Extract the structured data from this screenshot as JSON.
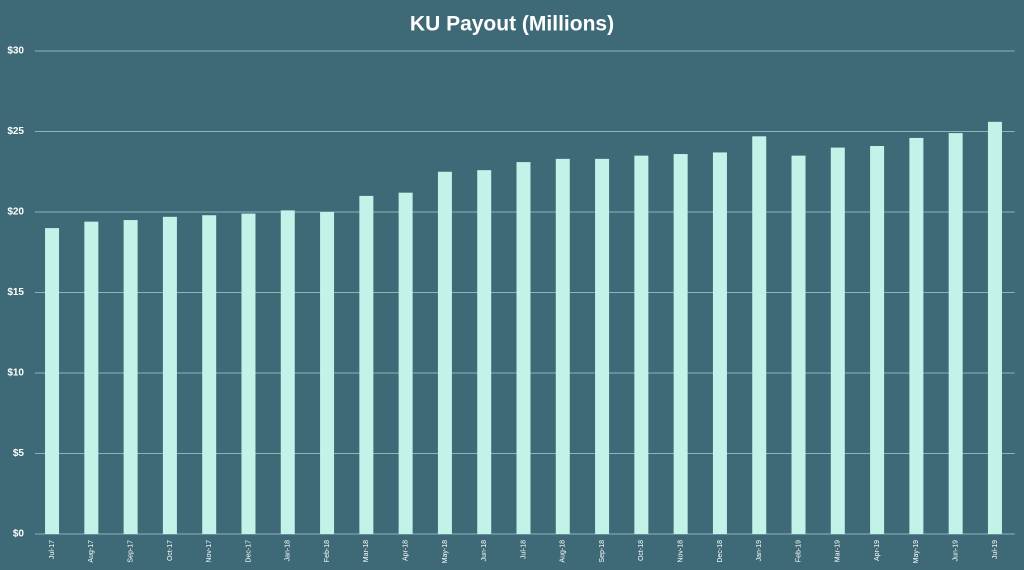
{
  "chart_data": {
    "type": "bar",
    "title": "KU Payout (Millions)",
    "categories": [
      "Jul-17",
      "Aug-17",
      "Sep-17",
      "Oct-17",
      "Nov-17",
      "Dec-17",
      "Jan-18",
      "Feb-18",
      "Mar-18",
      "Apr-18",
      "May-18",
      "Jun-18",
      "Jul-18",
      "Aug-18",
      "Sep-18",
      "Oct-18",
      "Nov-18",
      "Dec-18",
      "Jan-19",
      "Feb-19",
      "Mar-19",
      "Apr-19",
      "May-19",
      "Jun-19",
      "Jul-19"
    ],
    "values": [
      19.0,
      19.4,
      19.5,
      19.7,
      19.8,
      19.9,
      20.1,
      20.0,
      21.0,
      21.2,
      22.5,
      22.6,
      23.1,
      23.3,
      23.3,
      23.5,
      23.6,
      23.7,
      24.7,
      23.5,
      24.0,
      24.1,
      24.6,
      24.9,
      25.6
    ],
    "color": "#c2f2e8",
    "ylim": [
      0,
      30
    ],
    "yticks": [
      {
        "value": 0,
        "label": "$0"
      },
      {
        "value": 5,
        "label": "$5"
      },
      {
        "value": 10,
        "label": "$10"
      },
      {
        "value": 15,
        "label": "$15"
      },
      {
        "value": 20,
        "label": "$20"
      },
      {
        "value": 25,
        "label": "$25"
      },
      {
        "value": 30,
        "label": "$30"
      }
    ],
    "grid": true
  }
}
